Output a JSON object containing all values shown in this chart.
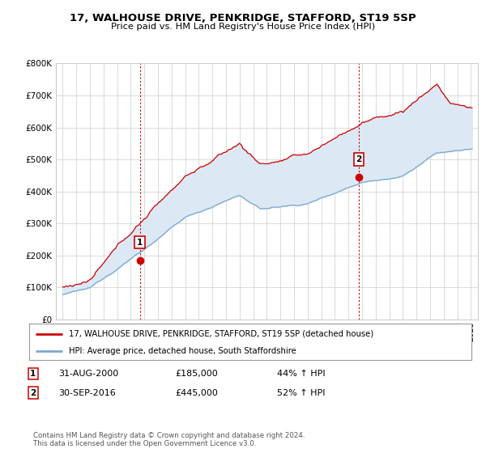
{
  "title": "17, WALHOUSE DRIVE, PENKRIDGE, STAFFORD, ST19 5SP",
  "subtitle": "Price paid vs. HM Land Registry's House Price Index (HPI)",
  "legend_line1": "17, WALHOUSE DRIVE, PENKRIDGE, STAFFORD, ST19 5SP (detached house)",
  "legend_line2": "HPI: Average price, detached house, South Staffordshire",
  "annotation1_date": "31-AUG-2000",
  "annotation1_price": "£185,000",
  "annotation1_hpi": "44% ↑ HPI",
  "annotation2_date": "30-SEP-2016",
  "annotation2_price": "£445,000",
  "annotation2_hpi": "52% ↑ HPI",
  "footnote": "Contains HM Land Registry data © Crown copyright and database right 2024.\nThis data is licensed under the Open Government Licence v3.0.",
  "red_color": "#cc0000",
  "blue_color": "#7aa8d0",
  "fill_color": "#dce9f5",
  "marker1_x": 2000.667,
  "marker1_y": 185000,
  "marker2_x": 2016.75,
  "marker2_y": 445000,
  "ylim": [
    0,
    800000
  ],
  "yticks": [
    0,
    100000,
    200000,
    300000,
    400000,
    500000,
    600000,
    700000,
    800000
  ],
  "ytick_labels": [
    "£0",
    "£100K",
    "£200K",
    "£300K",
    "£400K",
    "£500K",
    "£600K",
    "£700K",
    "£800K"
  ],
  "xlim": [
    1994.5,
    2025.5
  ]
}
